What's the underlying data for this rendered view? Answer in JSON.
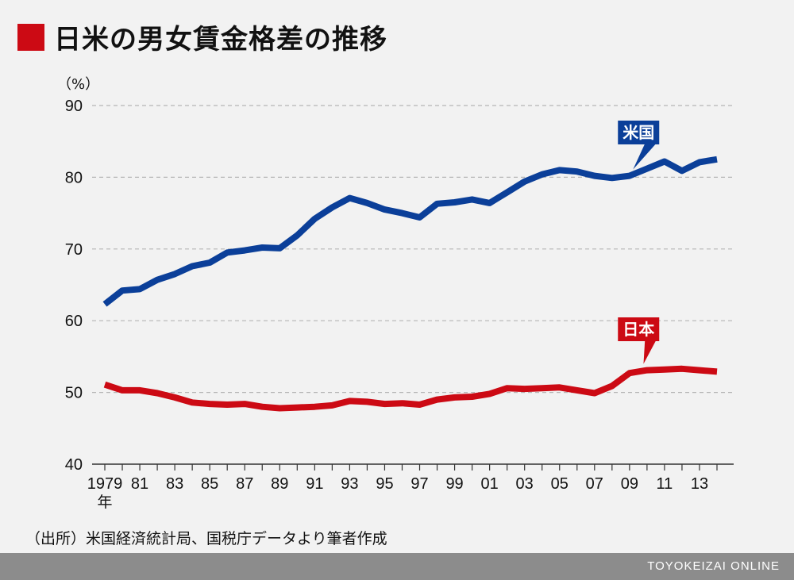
{
  "title": "日米の男女賃金格差の推移",
  "colors": {
    "title_marker": "#cc0a14",
    "us": "#0b3f99",
    "japan": "#cc0a14",
    "grid": "#b5b5b5",
    "axis": "#333333",
    "footer": "#8c8c8c"
  },
  "source": "（出所）米国経済統計局、国税庁データより筆者作成",
  "footer_brand": "TOYOKEIZAI ONLINE",
  "chart_data": {
    "type": "line",
    "unit_label": "（%）",
    "ylim": [
      40,
      90
    ],
    "yticks": [
      40,
      50,
      60,
      70,
      80,
      90
    ],
    "xlim": [
      1979,
      2014
    ],
    "x": [
      1979,
      1980,
      1981,
      1982,
      1983,
      1984,
      1985,
      1986,
      1987,
      1988,
      1989,
      1990,
      1991,
      1992,
      1993,
      1994,
      1995,
      1996,
      1997,
      1998,
      1999,
      2000,
      2001,
      2002,
      2003,
      2004,
      2005,
      2006,
      2007,
      2008,
      2009,
      2010,
      2011,
      2012,
      2013,
      2014
    ],
    "xtick_labels": [
      {
        "x": 1979,
        "label": "1979"
      },
      {
        "x": 1981,
        "label": "81"
      },
      {
        "x": 1983,
        "label": "83"
      },
      {
        "x": 1985,
        "label": "85"
      },
      {
        "x": 1987,
        "label": "87"
      },
      {
        "x": 1989,
        "label": "89"
      },
      {
        "x": 1991,
        "label": "91"
      },
      {
        "x": 1993,
        "label": "93"
      },
      {
        "x": 1995,
        "label": "95"
      },
      {
        "x": 1997,
        "label": "97"
      },
      {
        "x": 1999,
        "label": "99"
      },
      {
        "x": 2001,
        "label": "01"
      },
      {
        "x": 2003,
        "label": "03"
      },
      {
        "x": 2005,
        "label": "05"
      },
      {
        "x": 2007,
        "label": "07"
      },
      {
        "x": 2009,
        "label": "09"
      },
      {
        "x": 2011,
        "label": "11"
      },
      {
        "x": 2013,
        "label": "13"
      }
    ],
    "year_suffix": "年",
    "grid": true,
    "series": [
      {
        "name": "米国",
        "color": "#0b3f99",
        "label_x": 2008.7,
        "pointer_x": 2009.2,
        "values": [
          62.3,
          64.2,
          64.4,
          65.7,
          66.5,
          67.6,
          68.1,
          69.5,
          69.8,
          70.2,
          70.1,
          71.9,
          74.2,
          75.8,
          77.1,
          76.4,
          75.5,
          75.0,
          74.4,
          76.3,
          76.5,
          76.9,
          76.4,
          77.9,
          79.4,
          80.4,
          81.0,
          80.8,
          80.2,
          79.9,
          80.2,
          81.2,
          82.2,
          80.9,
          82.1,
          82.5
        ]
      },
      {
        "name": "日本",
        "color": "#cc0a14",
        "label_x": 2008.7,
        "pointer_x": 2009.8,
        "values": [
          51.1,
          50.3,
          50.3,
          49.9,
          49.3,
          48.6,
          48.4,
          48.3,
          48.4,
          48.0,
          47.8,
          47.9,
          48.0,
          48.2,
          48.8,
          48.7,
          48.4,
          48.5,
          48.3,
          49.0,
          49.3,
          49.4,
          49.8,
          50.6,
          50.5,
          50.6,
          50.7,
          50.3,
          49.9,
          50.9,
          52.7,
          53.1,
          53.2,
          53.3,
          53.1,
          52.9
        ]
      }
    ]
  }
}
